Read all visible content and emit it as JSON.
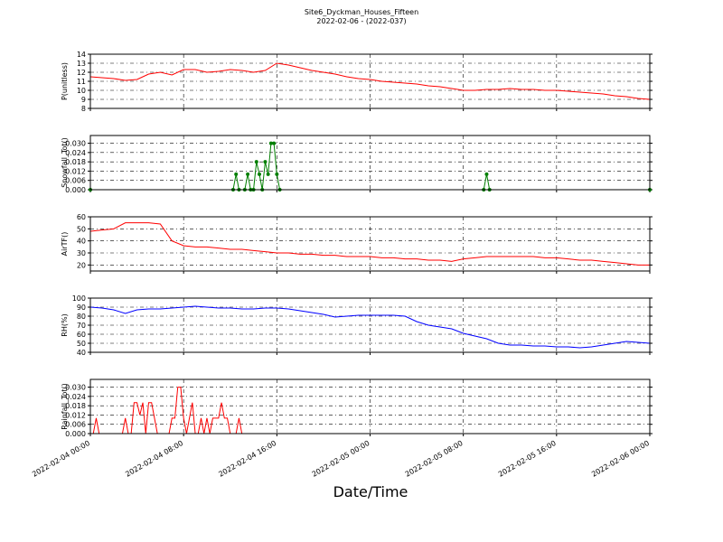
{
  "chart_data": [
    {
      "type": "line",
      "title": "Site6_Dyckman_Houses_Fifteen",
      "subtitle": "2022-02-06 - (2022-037)",
      "ylabel": "P(unitless)",
      "grid": true,
      "xlim": [
        "2022-02-04 00:00",
        "2022-02-06 00:00"
      ],
      "xticks": [
        "2022-02-04 00:00",
        "2022-02-04 08:00",
        "2022-02-04 16:00",
        "2022-02-05 00:00",
        "2022-02-05 08:00",
        "2022-02-05 16:00",
        "2022-02-06 00:00"
      ],
      "ylim": [
        8,
        14
      ],
      "yticks": [
        8,
        9,
        10,
        11,
        12,
        13,
        14
      ],
      "x": [
        "2022-02-04 00:00",
        "2022-02-04 01:00",
        "2022-02-04 02:00",
        "2022-02-04 03:00",
        "2022-02-04 04:00",
        "2022-02-04 05:00",
        "2022-02-04 06:00",
        "2022-02-04 07:00",
        "2022-02-04 08:00",
        "2022-02-04 09:00",
        "2022-02-04 10:00",
        "2022-02-04 11:00",
        "2022-02-04 12:00",
        "2022-02-04 13:00",
        "2022-02-04 14:00",
        "2022-02-04 15:00",
        "2022-02-04 16:00",
        "2022-02-04 17:00",
        "2022-02-04 18:00",
        "2022-02-04 19:00",
        "2022-02-04 20:00",
        "2022-02-04 21:00",
        "2022-02-04 22:00",
        "2022-02-04 23:00",
        "2022-02-05 00:00",
        "2022-02-05 01:00",
        "2022-02-05 02:00",
        "2022-02-05 03:00",
        "2022-02-05 04:00",
        "2022-02-05 05:00",
        "2022-02-05 06:00",
        "2022-02-05 07:00",
        "2022-02-05 08:00",
        "2022-02-05 09:00",
        "2022-02-05 10:00",
        "2022-02-05 11:00",
        "2022-02-05 12:00",
        "2022-02-05 13:00",
        "2022-02-05 14:00",
        "2022-02-05 15:00",
        "2022-02-05 16:00",
        "2022-02-05 17:00",
        "2022-02-05 18:00",
        "2022-02-05 19:00",
        "2022-02-05 20:00",
        "2022-02-05 21:00",
        "2022-02-05 22:00",
        "2022-02-05 23:00",
        "2022-02-06 00:00"
      ],
      "series": [
        {
          "color": "#ff0000",
          "values": [
            11.5,
            11.4,
            11.3,
            11.1,
            11.2,
            11.8,
            12.0,
            11.7,
            12.3,
            12.3,
            12.0,
            12.1,
            12.3,
            12.2,
            12.0,
            12.2,
            13.0,
            12.8,
            12.5,
            12.2,
            12.0,
            11.8,
            11.5,
            11.3,
            11.2,
            11.0,
            10.9,
            10.8,
            10.7,
            10.5,
            10.4,
            10.2,
            10.0,
            10.0,
            10.1,
            10.1,
            10.2,
            10.1,
            10.1,
            10.0,
            10.0,
            9.9,
            9.8,
            9.7,
            9.6,
            9.4,
            9.3,
            9.1,
            9.0
          ]
        }
      ]
    },
    {
      "type": "line",
      "ylabel": "Snowfall_Tot()",
      "grid": true,
      "marker": "o",
      "xlim": [
        "2022-02-04 00:00",
        "2022-02-06 00:00"
      ],
      "xticks": [
        "2022-02-04 00:00",
        "2022-02-04 08:00",
        "2022-02-04 16:00",
        "2022-02-05 00:00",
        "2022-02-05 08:00",
        "2022-02-05 16:00",
        "2022-02-06 00:00"
      ],
      "ylim": [
        0,
        0.035
      ],
      "yticks": [
        {
          "value": 0,
          "label": "0.000"
        },
        {
          "value": 0.006,
          "label": "0.006"
        },
        {
          "value": 0.012,
          "label": "0.012"
        },
        {
          "value": 0.018,
          "label": "0.018"
        },
        {
          "value": 0.024,
          "label": "0.024"
        },
        {
          "value": 0.03,
          "label": "0.030"
        }
      ],
      "x": [
        "2022-02-04 00:00",
        "2022-02-04 12:15",
        "2022-02-04 12:30",
        "2022-02-04 12:45",
        "2022-02-04 13:15",
        "2022-02-04 13:30",
        "2022-02-04 13:45",
        "2022-02-04 14:00",
        "2022-02-04 14:15",
        "2022-02-04 14:30",
        "2022-02-04 14:45",
        "2022-02-04 15:00",
        "2022-02-04 15:15",
        "2022-02-04 15:30",
        "2022-02-04 15:45",
        "2022-02-04 16:00",
        "2022-02-04 16:15",
        "2022-02-05 09:45",
        "2022-02-05 10:00",
        "2022-02-05 10:15",
        "2022-02-06 00:00"
      ],
      "series": [
        {
          "color": "#007f00",
          "values": [
            0,
            0,
            0.01,
            0,
            0,
            0.01,
            0,
            0,
            0.018,
            0.01,
            0,
            0.018,
            0.01,
            0.03,
            0.03,
            0.01,
            0,
            0,
            0.01,
            0,
            0
          ]
        }
      ]
    },
    {
      "type": "line",
      "ylabel": "AirTF()",
      "grid": true,
      "xlim": [
        "2022-02-04 00:00",
        "2022-02-06 00:00"
      ],
      "xticks": [
        "2022-02-04 00:00",
        "2022-02-04 08:00",
        "2022-02-04 16:00",
        "2022-02-05 00:00",
        "2022-02-05 08:00",
        "2022-02-05 16:00",
        "2022-02-06 00:00"
      ],
      "ylim": [
        15,
        60
      ],
      "yticks": [
        20,
        30,
        40,
        50,
        60
      ],
      "x": [
        "2022-02-04 00:00",
        "2022-02-04 01:00",
        "2022-02-04 02:00",
        "2022-02-04 03:00",
        "2022-02-04 04:00",
        "2022-02-04 05:00",
        "2022-02-04 06:00",
        "2022-02-04 07:00",
        "2022-02-04 08:00",
        "2022-02-04 09:00",
        "2022-02-04 10:00",
        "2022-02-04 11:00",
        "2022-02-04 12:00",
        "2022-02-04 13:00",
        "2022-02-04 14:00",
        "2022-02-04 15:00",
        "2022-02-04 16:00",
        "2022-02-04 17:00",
        "2022-02-04 18:00",
        "2022-02-04 19:00",
        "2022-02-04 20:00",
        "2022-02-04 21:00",
        "2022-02-04 22:00",
        "2022-02-04 23:00",
        "2022-02-05 00:00",
        "2022-02-05 01:00",
        "2022-02-05 02:00",
        "2022-02-05 03:00",
        "2022-02-05 04:00",
        "2022-02-05 05:00",
        "2022-02-05 06:00",
        "2022-02-05 07:00",
        "2022-02-05 08:00",
        "2022-02-05 09:00",
        "2022-02-05 10:00",
        "2022-02-05 11:00",
        "2022-02-05 12:00",
        "2022-02-05 13:00",
        "2022-02-05 14:00",
        "2022-02-05 15:00",
        "2022-02-05 16:00",
        "2022-02-05 17:00",
        "2022-02-05 18:00",
        "2022-02-05 19:00",
        "2022-02-05 20:00",
        "2022-02-05 21:00",
        "2022-02-05 22:00",
        "2022-02-05 23:00",
        "2022-02-06 00:00"
      ],
      "series": [
        {
          "color": "#ff0000",
          "values": [
            48,
            49,
            50,
            55,
            55,
            55,
            54,
            40,
            36,
            35,
            35,
            34,
            33,
            33,
            32,
            31,
            30,
            30,
            29,
            29,
            28,
            28,
            27,
            27,
            27,
            26,
            26,
            25,
            25,
            24,
            24,
            23,
            25,
            26,
            27,
            27,
            27,
            27,
            27,
            26,
            26,
            25,
            24,
            24,
            23,
            22,
            21,
            20,
            20
          ]
        }
      ]
    },
    {
      "type": "line",
      "ylabel": "RH(%)",
      "grid": true,
      "xlim": [
        "2022-02-04 00:00",
        "2022-02-06 00:00"
      ],
      "xticks": [
        "2022-02-04 00:00",
        "2022-02-04 08:00",
        "2022-02-04 16:00",
        "2022-02-05 00:00",
        "2022-02-05 08:00",
        "2022-02-05 16:00",
        "2022-02-06 00:00"
      ],
      "ylim": [
        40,
        100
      ],
      "yticks": [
        40,
        50,
        60,
        70,
        80,
        90,
        100
      ],
      "x": [
        "2022-02-04 00:00",
        "2022-02-04 01:00",
        "2022-02-04 02:00",
        "2022-02-04 03:00",
        "2022-02-04 04:00",
        "2022-02-04 05:00",
        "2022-02-04 06:00",
        "2022-02-04 07:00",
        "2022-02-04 08:00",
        "2022-02-04 09:00",
        "2022-02-04 10:00",
        "2022-02-04 11:00",
        "2022-02-04 12:00",
        "2022-02-04 13:00",
        "2022-02-04 14:00",
        "2022-02-04 15:00",
        "2022-02-04 16:00",
        "2022-02-04 17:00",
        "2022-02-04 18:00",
        "2022-02-04 19:00",
        "2022-02-04 20:00",
        "2022-02-04 21:00",
        "2022-02-04 22:00",
        "2022-02-04 23:00",
        "2022-02-05 00:00",
        "2022-02-05 01:00",
        "2022-02-05 02:00",
        "2022-02-05 03:00",
        "2022-02-05 04:00",
        "2022-02-05 05:00",
        "2022-02-05 06:00",
        "2022-02-05 07:00",
        "2022-02-05 08:00",
        "2022-02-05 09:00",
        "2022-02-05 10:00",
        "2022-02-05 11:00",
        "2022-02-05 12:00",
        "2022-02-05 13:00",
        "2022-02-05 14:00",
        "2022-02-05 15:00",
        "2022-02-05 16:00",
        "2022-02-05 17:00",
        "2022-02-05 18:00",
        "2022-02-05 19:00",
        "2022-02-05 20:00",
        "2022-02-05 21:00",
        "2022-02-05 22:00",
        "2022-02-05 23:00",
        "2022-02-06 00:00"
      ],
      "series": [
        {
          "color": "#0000ff",
          "values": [
            90,
            89,
            87,
            83,
            87,
            88,
            88,
            89,
            90,
            91,
            90,
            89,
            89,
            88,
            88,
            89,
            89,
            88,
            86,
            84,
            82,
            79,
            80,
            81,
            81,
            81,
            81,
            80,
            74,
            70,
            68,
            66,
            61,
            58,
            55,
            50,
            48,
            48,
            47,
            47,
            46,
            46,
            45,
            46,
            48,
            50,
            52,
            51,
            50
          ]
        }
      ]
    },
    {
      "type": "line",
      "ylabel": "Rainfall_Tot()",
      "xlabel": "Date/Time",
      "grid": true,
      "xlim": [
        "2022-02-04 00:00",
        "2022-02-06 00:00"
      ],
      "xticks": [
        "2022-02-04 00:00",
        "2022-02-04 08:00",
        "2022-02-04 16:00",
        "2022-02-05 00:00",
        "2022-02-05 08:00",
        "2022-02-05 16:00",
        "2022-02-06 00:00"
      ],
      "ylim": [
        0,
        0.035
      ],
      "yticks": [
        {
          "value": 0,
          "label": "0.000"
        },
        {
          "value": 0.006,
          "label": "0.006"
        },
        {
          "value": 0.012,
          "label": "0.012"
        },
        {
          "value": 0.018,
          "label": "0.018"
        },
        {
          "value": 0.024,
          "label": "0.024"
        },
        {
          "value": 0.03,
          "label": "0.030"
        }
      ],
      "x": [
        "2022-02-04 00:00",
        "2022-02-04 00:15",
        "2022-02-04 00:30",
        "2022-02-04 00:45",
        "2022-02-04 02:45",
        "2022-02-04 03:00",
        "2022-02-04 03:15",
        "2022-02-04 03:30",
        "2022-02-04 03:45",
        "2022-02-04 04:00",
        "2022-02-04 04:15",
        "2022-02-04 04:30",
        "2022-02-04 04:45",
        "2022-02-04 05:00",
        "2022-02-04 05:15",
        "2022-02-04 05:30",
        "2022-02-04 05:45",
        "2022-02-04 06:45",
        "2022-02-04 07:00",
        "2022-02-04 07:15",
        "2022-02-04 07:30",
        "2022-02-04 07:45",
        "2022-02-04 08:00",
        "2022-02-04 08:15",
        "2022-02-04 08:30",
        "2022-02-04 08:45",
        "2022-02-04 09:00",
        "2022-02-04 09:15",
        "2022-02-04 09:30",
        "2022-02-04 09:45",
        "2022-02-04 10:00",
        "2022-02-04 10:15",
        "2022-02-04 10:30",
        "2022-02-04 10:45",
        "2022-02-04 11:00",
        "2022-02-04 11:15",
        "2022-02-04 11:30",
        "2022-02-04 11:45",
        "2022-02-04 12:00",
        "2022-02-04 12:30",
        "2022-02-04 12:45",
        "2022-02-04 13:00",
        "2022-02-06 00:00"
      ],
      "series": [
        {
          "color": "#ff0000",
          "values": [
            0,
            0,
            0.01,
            0,
            0,
            0.01,
            0,
            0,
            0.02,
            0.02,
            0.012,
            0.02,
            0,
            0.02,
            0.02,
            0.01,
            0,
            0,
            0.01,
            0.01,
            0.03,
            0.03,
            0.01,
            0,
            0.01,
            0.02,
            0,
            0,
            0.01,
            0,
            0.01,
            0,
            0.01,
            0.01,
            0.01,
            0.02,
            0.01,
            0.01,
            0,
            0,
            0.01,
            0,
            0
          ]
        }
      ]
    }
  ]
}
